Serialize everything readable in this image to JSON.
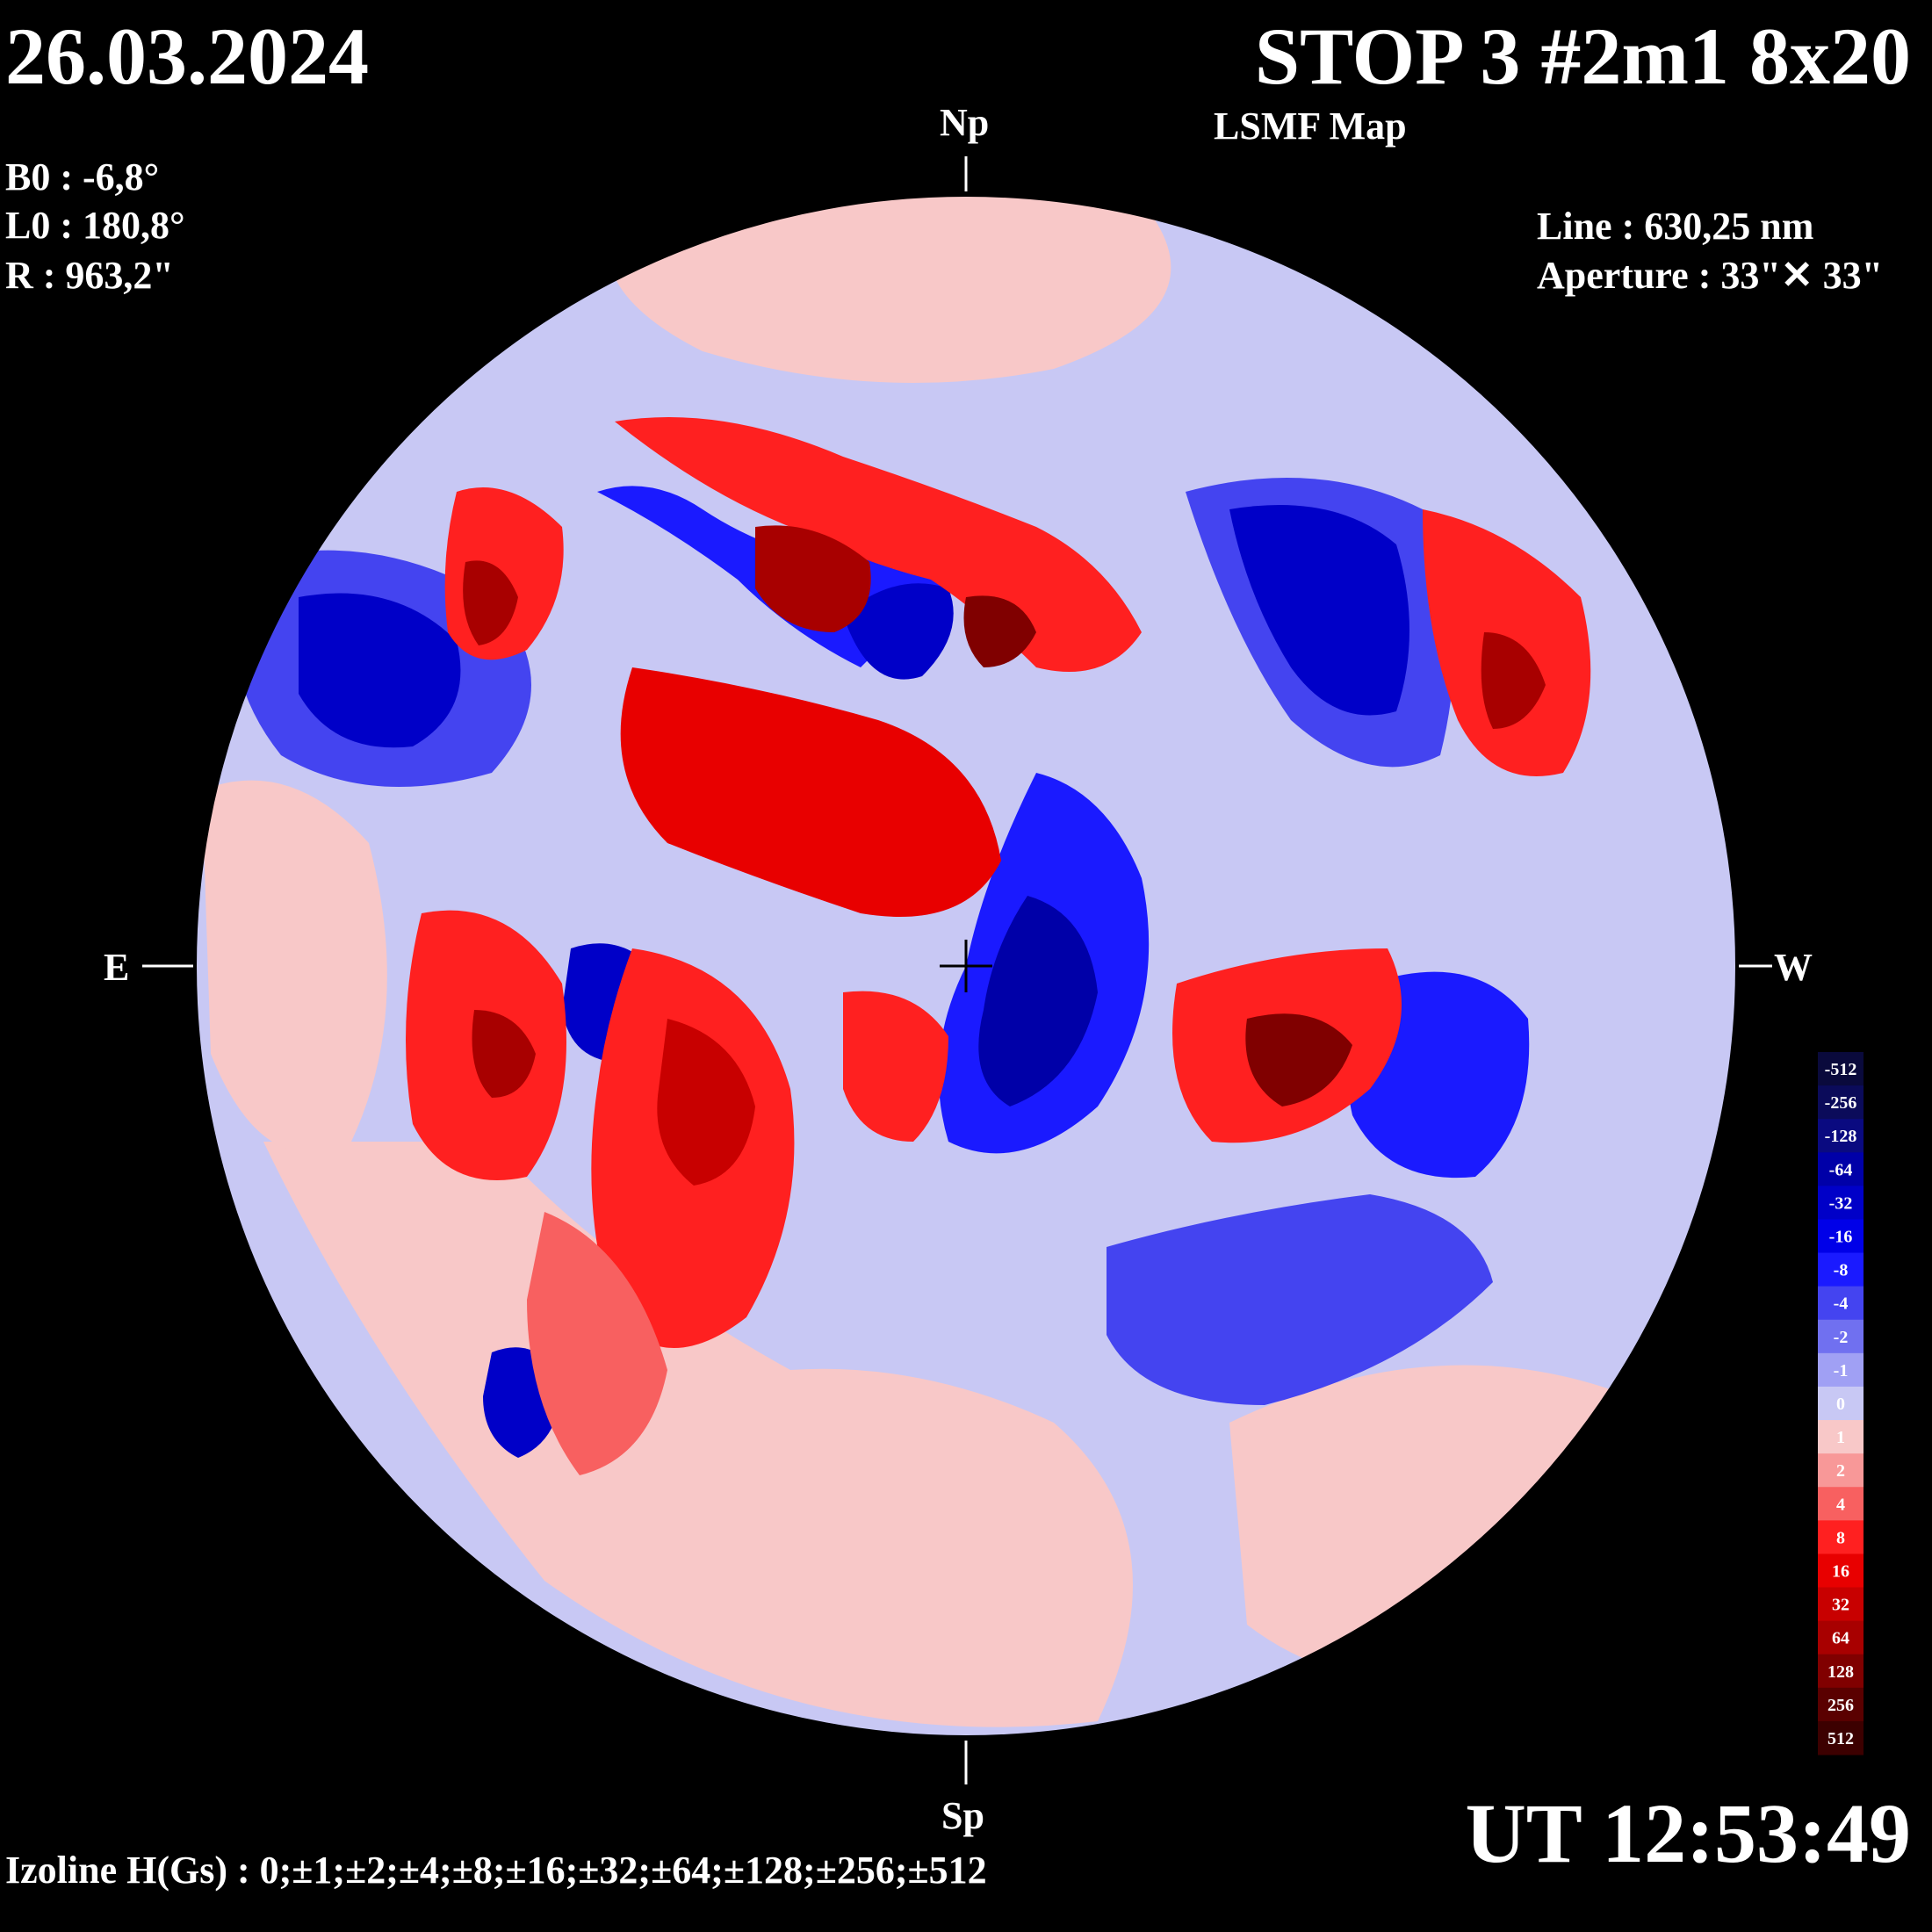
{
  "header": {
    "date": "26.03.2024",
    "title": "STOP 3 #2m1 8x20",
    "subtitle": "LSMF  Map"
  },
  "params": {
    "b0": "B0 : -6,8°",
    "l0": "L0 : 180,8°",
    "r": "R  : 963,2\""
  },
  "instrument": {
    "line": "Line :  630,25 nm",
    "aperture": "Aperture : 33\"✕ 33\""
  },
  "directions": {
    "north": "Np",
    "south": "Sp",
    "east": "E",
    "west": "W"
  },
  "time": "UT 12:53:49",
  "izoline": "Izoline H(Gs) : 0;±1;±2;±4;±8;±16;±32;±64;±128;±256;±512",
  "colorbar": {
    "levels": [
      {
        "label": "-512",
        "color": "#0a0a3c"
      },
      {
        "label": "-256",
        "color": "#0b0b5a"
      },
      {
        "label": "-128",
        "color": "#0a0a80"
      },
      {
        "label": "-64",
        "color": "#0000a8"
      },
      {
        "label": "-32",
        "color": "#0000c8"
      },
      {
        "label": "-16",
        "color": "#0000e8"
      },
      {
        "label": "-8",
        "color": "#1a1aff"
      },
      {
        "label": "-4",
        "color": "#4444f0"
      },
      {
        "label": "-2",
        "color": "#7070f0"
      },
      {
        "label": "-1",
        "color": "#a0a0f4"
      },
      {
        "label": "0",
        "color": "#c8c8f4"
      },
      {
        "label": "1",
        "color": "#f8c8c8"
      },
      {
        "label": "2",
        "color": "#f89898"
      },
      {
        "label": "4",
        "color": "#f86060"
      },
      {
        "label": "8",
        "color": "#ff2020"
      },
      {
        "label": "16",
        "color": "#e80000"
      },
      {
        "label": "32",
        "color": "#c80000"
      },
      {
        "label": "64",
        "color": "#a80000"
      },
      {
        "label": "128",
        "color": "#800000"
      },
      {
        "label": "256",
        "color": "#5a0000"
      },
      {
        "label": "512",
        "color": "#3c0000"
      }
    ]
  },
  "colors": {
    "positive": "#e80000",
    "negative": "#0000e8",
    "neutral_neg": "#c8c8f4",
    "neutral_pos": "#f8c8c8",
    "contour": "#ffffff"
  }
}
